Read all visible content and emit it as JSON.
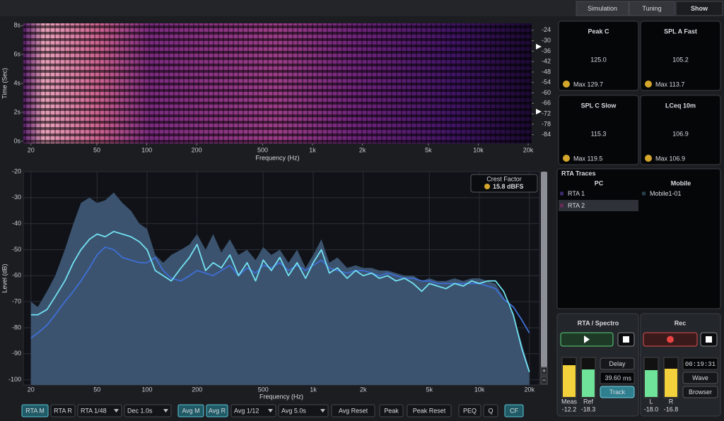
{
  "tabs": [
    {
      "label": "Simulation",
      "active": false
    },
    {
      "label": "Tuning",
      "active": false
    },
    {
      "label": "Show",
      "active": true
    }
  ],
  "spectrogram": {
    "type": "heatmap",
    "x_label": "Frequency (Hz)",
    "y_label": "Time (Sec)",
    "xlim": [
      18,
      21000
    ],
    "xticks": [
      20,
      50,
      100,
      200,
      500,
      {
        "value": 1000,
        "label": "1k"
      },
      {
        "value": 2000,
        "label": "2k"
      },
      {
        "value": 5000,
        "label": "5k"
      },
      {
        "value": 10000,
        "label": "10k"
      },
      {
        "value": 20000,
        "label": "20k"
      }
    ],
    "ylim": [
      -0.15,
      8.15
    ],
    "yticks": [
      {
        "value": 8,
        "label": "8s"
      },
      {
        "value": 6,
        "label": "6s"
      },
      {
        "value": 4,
        "label": "4s"
      },
      {
        "value": 2,
        "label": "2s"
      },
      {
        "value": 0,
        "label": "0s"
      }
    ],
    "y2lim": [
      -89,
      -20
    ],
    "y2ticks": [
      -24,
      -30,
      -36,
      -42,
      -48,
      -54,
      -60,
      -66,
      -72,
      -78,
      -84
    ]
  },
  "rta": {
    "type": "line",
    "x_label": "Frequency (Hz)",
    "y_label": "Level (dB)",
    "log_x": true,
    "grid": true,
    "xlim": [
      18,
      23000
    ],
    "xticks": [
      20,
      50,
      100,
      200,
      500,
      {
        "value": 1000,
        "label": "1k"
      },
      {
        "value": 2000,
        "label": "2k"
      },
      {
        "value": 5000,
        "label": "5k"
      },
      {
        "value": 10000,
        "label": "10k"
      },
      {
        "value": 20000,
        "label": "20k"
      }
    ],
    "ylim": [
      -102,
      -20
    ],
    "yticks": [
      -20,
      -30,
      -40,
      -50,
      -60,
      -70,
      -80,
      -90,
      -100
    ],
    "x": [
      20,
      22,
      25,
      28,
      32,
      36,
      40,
      45,
      50,
      56,
      63,
      71,
      80,
      90,
      100,
      112,
      125,
      140,
      160,
      180,
      200,
      225,
      250,
      280,
      315,
      355,
      400,
      450,
      500,
      560,
      630,
      710,
      800,
      900,
      1000,
      1120,
      1250,
      1400,
      1600,
      1800,
      2000,
      2250,
      2500,
      2800,
      3150,
      3550,
      4000,
      4500,
      5000,
      5600,
      6300,
      7100,
      8000,
      9000,
      10000,
      11200,
      12500,
      14000,
      16000,
      18000,
      20000
    ],
    "series": [
      {
        "color": "#3b536f",
        "fill": true,
        "values": [
          -70,
          -72,
          -66,
          -60,
          -50,
          -40,
          -32,
          -30,
          -32,
          -31,
          -28,
          -32,
          -35,
          -40,
          -42,
          -52,
          -55,
          -52,
          -50,
          -48,
          -44,
          -50,
          -44,
          -51,
          -46,
          -52,
          -50,
          -54,
          -49,
          -52,
          -50,
          -55,
          -50,
          -57,
          -52,
          -46,
          -55,
          -53,
          -57,
          -56,
          -57,
          -57,
          -58,
          -58,
          -59,
          -60,
          -60,
          -62,
          -61,
          -62,
          -62,
          -61,
          -62,
          -61,
          -61,
          -62,
          -63,
          -68,
          -75,
          -86,
          -96
        ]
      },
      {
        "color": "#3f6fd6",
        "fill": false,
        "values": [
          -84,
          -82,
          -79,
          -75,
          -70,
          -66,
          -62,
          -57,
          -52,
          -49,
          -50,
          -53,
          -54,
          -55,
          -55,
          -53,
          -58,
          -61,
          -62,
          -60,
          -58,
          -59,
          -60,
          -58,
          -56,
          -60,
          -57,
          -59,
          -56,
          -57,
          -55,
          -58,
          -56,
          -58,
          -56,
          -54,
          -57,
          -58,
          -59,
          -58,
          -58,
          -59,
          -60,
          -59,
          -60,
          -61,
          -61,
          -62,
          -62,
          -63,
          -63,
          -63,
          -63,
          -63,
          -63,
          -64,
          -65,
          -69,
          -72,
          -77,
          -82
        ]
      },
      {
        "color": "#72e2f2",
        "fill": false,
        "values": [
          -75,
          -75,
          -73,
          -68,
          -62,
          -55,
          -50,
          -46,
          -44,
          -45,
          -43,
          -44,
          -45,
          -47,
          -50,
          -58,
          -60,
          -62,
          -57,
          -53,
          -48,
          -58,
          -55,
          -57,
          -52,
          -60,
          -55,
          -62,
          -54,
          -58,
          -53,
          -60,
          -55,
          -61,
          -55,
          -50,
          -59,
          -57,
          -61,
          -58,
          -60,
          -59,
          -61,
          -60,
          -62,
          -61,
          -63,
          -66,
          -63,
          -64,
          -65,
          -63,
          -64,
          -62,
          -63,
          -62,
          -62,
          -66,
          -75,
          -88,
          -97
        ]
      }
    ],
    "crest_factor": {
      "label": "Crest Factor",
      "value": "15.8 dBFS"
    }
  },
  "meters": [
    {
      "title": "Peak C",
      "value": "125.0",
      "max": "Max 129.7",
      "color": "#e8504e"
    },
    {
      "title": "SPL A Fast",
      "value": "105.2",
      "max": "Max 113.7",
      "color": "#f5c94a"
    },
    {
      "title": "SPL C Slow",
      "value": "115.3",
      "max": "Max 119.5",
      "color": "#f5c94a"
    },
    {
      "title": "LCeq 10m",
      "value": "106.9",
      "max": "Max 106.9",
      "color": "#f5c94a"
    }
  ],
  "traces": {
    "title": "RTA Traces",
    "columns": [
      {
        "name": "PC",
        "items": [
          "RTA 1",
          "RTA 2"
        ],
        "selected": 1
      },
      {
        "name": "Mobile",
        "items": [
          "Mobile1-01"
        ]
      }
    ]
  },
  "rta_spectro": {
    "title": "RTA / Spectro",
    "meters": [
      {
        "label": "Meas",
        "value": "-12.2"
      },
      {
        "label": "Ref",
        "value": "-18.3"
      }
    ],
    "delay_button": "Delay",
    "delay": "39.60",
    "delay_unit": "ms",
    "track_button": "Track"
  },
  "rec": {
    "title": "Rec",
    "meters": [
      {
        "label": "L",
        "value": "-18.0"
      },
      {
        "label": "R",
        "value": "-16.8"
      }
    ],
    "time": "00:19:31",
    "buttons": [
      "Wave",
      "Browser"
    ]
  },
  "toolbar": [
    {
      "label": "RTA M",
      "active": true
    },
    {
      "label": "RTA R",
      "active": false
    },
    {
      "label": "RTA 1/48",
      "active": false,
      "dropdown": true
    },
    {
      "label": "Dec 1.0s",
      "active": false,
      "dropdown": true
    },
    {
      "label": "Avg M",
      "active": true
    },
    {
      "label": "Avg R",
      "active": true
    },
    {
      "label": "Avg 1/12",
      "active": false,
      "dropdown": true
    },
    {
      "label": "Avg 5.0s",
      "active": false,
      "dropdown": true
    },
    {
      "label": "Avg Reset",
      "active": false
    },
    {
      "label": "Peak",
      "active": false
    },
    {
      "label": "Peak Reset",
      "active": false
    },
    {
      "label": "PEQ",
      "active": false
    },
    {
      "label": "Q",
      "active": false
    },
    {
      "label": "CF",
      "active": true
    }
  ]
}
